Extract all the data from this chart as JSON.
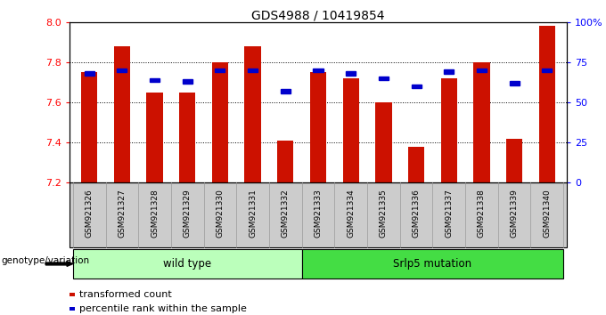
{
  "title": "GDS4988 / 10419854",
  "samples": [
    "GSM921326",
    "GSM921327",
    "GSM921328",
    "GSM921329",
    "GSM921330",
    "GSM921331",
    "GSM921332",
    "GSM921333",
    "GSM921334",
    "GSM921335",
    "GSM921336",
    "GSM921337",
    "GSM921338",
    "GSM921339",
    "GSM921340"
  ],
  "red_values": [
    7.75,
    7.88,
    7.65,
    7.65,
    7.8,
    7.88,
    7.41,
    7.75,
    7.72,
    7.6,
    7.38,
    7.72,
    7.8,
    7.42,
    7.98
  ],
  "blue_values_pct": [
    68,
    70,
    64,
    63,
    70,
    70,
    57,
    70,
    68,
    65,
    60,
    69,
    70,
    62,
    70
  ],
  "ylim_left": [
    7.2,
    8.0
  ],
  "ylim_right": [
    0,
    100
  ],
  "yticks_left": [
    7.2,
    7.4,
    7.6,
    7.8,
    8.0
  ],
  "yticks_right": [
    0,
    25,
    50,
    75,
    100
  ],
  "ytick_labels_right": [
    "0",
    "25",
    "50",
    "75",
    "100%"
  ],
  "grid_values": [
    7.4,
    7.6,
    7.8
  ],
  "wild_type_count": 7,
  "wild_type_label": "wild type",
  "mutation_label": "Srlp5 mutation",
  "genotype_label": "genotype/variation",
  "legend_red": "transformed count",
  "legend_blue": "percentile rank within the sample",
  "bar_color": "#CC1100",
  "blue_color": "#0000CC",
  "wild_type_bg": "#BBFFBB",
  "mutation_bg": "#44DD44",
  "xtick_bg": "#CCCCCC",
  "bar_width": 0.5
}
